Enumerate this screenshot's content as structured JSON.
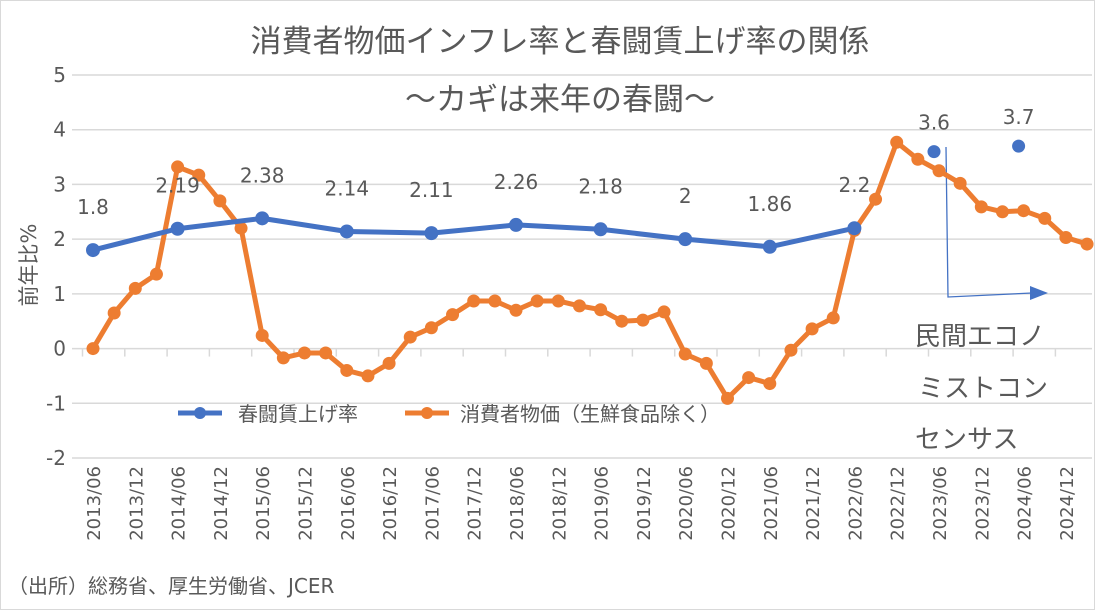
{
  "chart_data": {
    "type": "line",
    "title": "消費者物価インフレ率と春闘賃上げ率の関係",
    "subtitle": "～カギは来年の春闘～",
    "ylabel": "前年比%",
    "xlabel": "",
    "ylim": [
      -2,
      5
    ],
    "yticks": [
      "5",
      "4",
      "3",
      "2",
      "1",
      "0",
      "-1",
      "-2"
    ],
    "grid": true,
    "legend_position": "bottom-left inside",
    "xtick_labels": [
      "2013/06",
      "2013/12",
      "2014/06",
      "2014/12",
      "2015/06",
      "2015/12",
      "2016/06",
      "2016/12",
      "2017/06",
      "2017/12",
      "2018/06",
      "2018/12",
      "2019/06",
      "2019/12",
      "2020/06",
      "2020/12",
      "2021/06",
      "2021/12",
      "2022/06",
      "2022/12",
      "2023/06",
      "2023/12",
      "2024/06",
      "2024/12"
    ],
    "series": [
      {
        "name": "春闘賃上げ率",
        "color": "#4472C4",
        "x": [
          "2013/06",
          "2014/06",
          "2015/06",
          "2016/06",
          "2017/06",
          "2018/06",
          "2019/06",
          "2020/06",
          "2021/06",
          "2022/06"
        ],
        "values": [
          1.8,
          2.19,
          2.38,
          2.14,
          2.11,
          2.26,
          2.18,
          2,
          1.86,
          2.2
        ],
        "labels": [
          "1.8",
          "2.19",
          "2.38",
          "2.14",
          "2.11",
          "2.26",
          "2.18",
          "2",
          "1.86",
          "2.2"
        ]
      },
      {
        "name": "春闘賃上げ率（民間エコノミストコンセンサス）",
        "color": "#4472C4",
        "x": [
          "2023/06",
          "2024/06"
        ],
        "values": [
          3.6,
          3.7
        ],
        "labels": [
          "3.6",
          "3.7"
        ]
      },
      {
        "name": "消費者物価（生鮮食品除く）",
        "color": "#ED7D31",
        "x_start": "2013/06",
        "x_step": "quarterly",
        "values": [
          0,
          0.65,
          1.1,
          1.36,
          3.32,
          3.17,
          2.7,
          2.2,
          0.24,
          -0.17,
          -0.08,
          -0.08,
          -0.4,
          -0.5,
          -0.27,
          0.21,
          0.38,
          0.62,
          0.87,
          0.87,
          0.7,
          0.87,
          0.87,
          0.78,
          0.71,
          0.5,
          0.52,
          0.67,
          -0.1,
          -0.27,
          -0.91,
          -0.53,
          -0.64,
          -0.03,
          0.36,
          0.56,
          2.16,
          2.73,
          3.77,
          3.46,
          3.25,
          3.02,
          2.59,
          2.5,
          2.52,
          2.38,
          2.03,
          1.91
        ]
      }
    ],
    "annotation": [
      "民間エコノ",
      "ミストコン",
      "センサス"
    ],
    "source": "（出所）総務省、厚生労働省、JCER"
  }
}
